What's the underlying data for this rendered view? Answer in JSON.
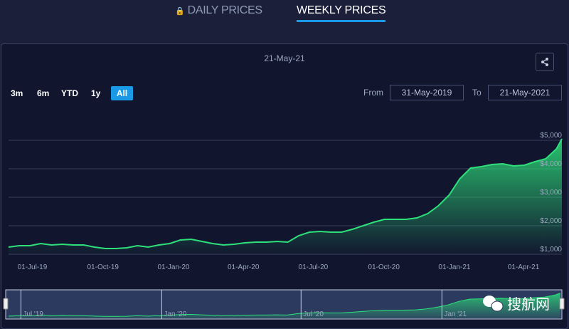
{
  "tabs": {
    "daily": "DAILY PRICES",
    "weekly": "WEEKLY PRICES",
    "active": "weekly"
  },
  "toolbar": {
    "ranges": [
      "3m",
      "6m",
      "YTD",
      "1y",
      "All"
    ],
    "active_range": "All",
    "from_label": "From",
    "from_value": "31-May-2019",
    "to_label": "To",
    "to_value": "21-May-2021",
    "share_icon": "share-icon"
  },
  "watermark": "搜航网",
  "colors": {
    "line": "#2ee07a",
    "accent": "#1a9ae6",
    "background": "#11152e"
  },
  "chart_data": {
    "type": "area",
    "title": "21-May-21",
    "xlabel": "",
    "ylabel": "",
    "ylim": [
      1000,
      5000
    ],
    "y_ticks": [
      "$1,000",
      "$2,000",
      "$3,000",
      "$4,000",
      "$5,000"
    ],
    "y_tick_values": [
      1000,
      2000,
      3000,
      4000,
      5000
    ],
    "x_ticks": [
      "01-Jul-19",
      "01-Oct-19",
      "01-Jan-20",
      "01-Apr-20",
      "01-Jul-20",
      "01-Oct-20",
      "01-Jan-21",
      "01-Apr-21"
    ],
    "x_tick_dates": [
      "2019-07-01",
      "2019-10-01",
      "2020-01-01",
      "2020-04-01",
      "2020-07-01",
      "2020-10-01",
      "2021-01-01",
      "2021-04-01"
    ],
    "xlim": [
      "2019-05-31",
      "2021-05-21"
    ],
    "grid": true,
    "navigator_ticks": [
      "Jul '19",
      "Jan '20",
      "Jul '20",
      "Jan '21"
    ],
    "navigator_tick_dates": [
      "2019-07-01",
      "2020-01-01",
      "2020-07-01",
      "2021-01-01"
    ],
    "series": [
      {
        "dates": [
          "2019-05-31",
          "2019-06-14",
          "2019-06-28",
          "2019-07-12",
          "2019-07-26",
          "2019-08-09",
          "2019-08-23",
          "2019-09-06",
          "2019-09-20",
          "2019-10-04",
          "2019-10-18",
          "2019-11-01",
          "2019-11-15",
          "2019-11-29",
          "2019-12-13",
          "2019-12-27",
          "2020-01-10",
          "2020-01-24",
          "2020-02-07",
          "2020-02-21",
          "2020-03-06",
          "2020-03-20",
          "2020-04-03",
          "2020-04-17",
          "2020-05-01",
          "2020-05-15",
          "2020-05-29",
          "2020-06-12",
          "2020-06-26",
          "2020-07-10",
          "2020-07-24",
          "2020-08-07",
          "2020-08-21",
          "2020-09-04",
          "2020-09-18",
          "2020-10-02",
          "2020-10-16",
          "2020-10-30",
          "2020-11-13",
          "2020-11-27",
          "2020-12-11",
          "2020-12-25",
          "2021-01-08",
          "2021-01-22",
          "2021-02-05",
          "2021-02-19",
          "2021-03-05",
          "2021-03-19",
          "2021-04-02",
          "2021-04-16",
          "2021-04-30",
          "2021-05-14",
          "2021-05-21"
        ],
        "values": [
          1250,
          1300,
          1300,
          1375,
          1325,
          1350,
          1325,
          1325,
          1250,
          1200,
          1200,
          1225,
          1300,
          1250,
          1325,
          1375,
          1500,
          1525,
          1450,
          1375,
          1325,
          1350,
          1400,
          1425,
          1425,
          1450,
          1425,
          1650,
          1775,
          1800,
          1775,
          1775,
          1875,
          2000,
          2125,
          2225,
          2225,
          2225,
          2275,
          2425,
          2700,
          3075,
          3650,
          4025,
          4075,
          4150,
          4175,
          4100,
          4125,
          4250,
          4350,
          4700,
          5050
        ]
      }
    ]
  }
}
